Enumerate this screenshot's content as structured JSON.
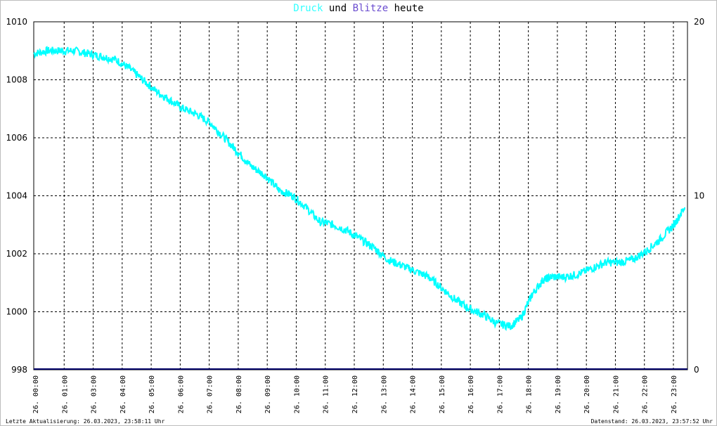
{
  "title": {
    "part1": "Druck",
    "part2": " und ",
    "part3": "Blitze",
    "part4": " heute",
    "color1": "#33ffff",
    "color3": "#6a4ccf",
    "color_text": "#000000"
  },
  "footer": {
    "left": "Letzte Aktualisierung: 26.03.2023, 23:58:11 Uhr",
    "right": "Datenstand: 26.03.2023, 23:57:52 Uhr"
  },
  "chart_data": {
    "type": "line",
    "grid": true,
    "y_left": {
      "min": 998,
      "max": 1010,
      "ticks": [
        "998",
        "1000",
        "1002",
        "1004",
        "1006",
        "1008",
        "1010"
      ]
    },
    "y_right": {
      "min": 0,
      "max": 20,
      "ticks": [
        "0",
        "10",
        "20"
      ]
    },
    "x_ticks": [
      "26. 00:00",
      "26. 01:00",
      "26. 03:00",
      "26. 04:00",
      "26. 05:00",
      "26. 06:00",
      "26. 07:00",
      "26. 08:00",
      "26. 09:00",
      "26. 10:00",
      "26. 11:00",
      "26. 12:00",
      "26. 13:00",
      "26. 14:00",
      "26. 15:00",
      "26. 16:00",
      "26. 17:00",
      "26. 18:00",
      "26. 19:00",
      "26. 20:00",
      "26. 21:00",
      "26. 22:00",
      "26. 23:00"
    ],
    "series": [
      {
        "color": "#00ffff",
        "axis": "left",
        "x_hours": [
          0,
          0.5,
          1,
          1.5,
          2,
          2.5,
          3,
          3.5,
          4,
          4.5,
          5,
          5.5,
          6,
          6.5,
          7,
          7.5,
          8,
          8.5,
          9,
          9.5,
          10,
          10.5,
          11,
          11.5,
          12,
          12.5,
          13,
          13.5,
          14,
          14.5,
          15,
          15.5,
          16,
          16.5,
          17,
          17.5,
          17.9,
          18.3,
          18.7,
          19,
          19.5,
          20,
          20.5,
          21,
          21.5,
          22,
          22.5,
          23,
          23.5,
          23.9
        ],
        "values": [
          1008.9,
          1009.0,
          1009.0,
          1009.0,
          1008.9,
          1008.8,
          1008.7,
          1008.4,
          1008.0,
          1007.6,
          1007.3,
          1007.0,
          1006.8,
          1006.5,
          1006.0,
          1005.5,
          1005.0,
          1004.7,
          1004.2,
          1004.0,
          1003.6,
          1003.1,
          1003.0,
          1002.8,
          1002.5,
          1002.2,
          1001.8,
          1001.6,
          1001.4,
          1001.2,
          1000.8,
          1000.4,
          1000.1,
          999.9,
          999.6,
          999.5,
          999.8,
          1000.6,
          1001.1,
          1001.2,
          1001.2,
          1001.3,
          1001.5,
          1001.7,
          1001.7,
          1001.8,
          1002.1,
          1002.5,
          1003.0,
          1003.6
        ]
      },
      {
        "color": "#000066",
        "axis": "right",
        "x_hours": [
          0,
          24
        ],
        "values": [
          0,
          0
        ]
      }
    ]
  }
}
